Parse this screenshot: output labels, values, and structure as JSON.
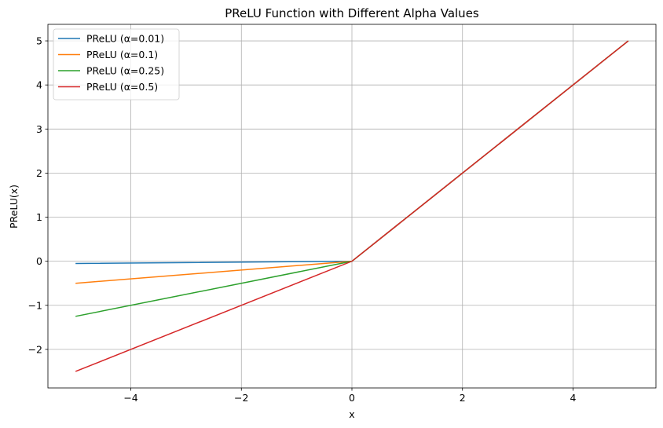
{
  "chart_data": {
    "type": "line",
    "title": "PReLU Function with Different Alpha Values",
    "xlabel": "x",
    "ylabel": "PReLU(x)",
    "xlim": [
      -5.5,
      5.5
    ],
    "ylim": [
      -2.875,
      5.375
    ],
    "xticks": [
      -4,
      -2,
      0,
      2,
      4
    ],
    "yticks": [
      -2,
      -1,
      0,
      1,
      2,
      3,
      4,
      5
    ],
    "xtick_labels": [
      "−4",
      "−2",
      "0",
      "2",
      "4"
    ],
    "ytick_labels": [
      "−2",
      "−1",
      "0",
      "1",
      "2",
      "3",
      "4",
      "5"
    ],
    "grid": true,
    "legend_position": "top-left",
    "series": [
      {
        "name": "PReLU (α=0.01)",
        "color": "#1f77b4",
        "x": [
          -5,
          0,
          5
        ],
        "y": [
          -0.05,
          0,
          5
        ]
      },
      {
        "name": "PReLU (α=0.1)",
        "color": "#ff7f0e",
        "x": [
          -5,
          0,
          5
        ],
        "y": [
          -0.5,
          0,
          5
        ]
      },
      {
        "name": "PReLU (α=0.25)",
        "color": "#2ca02c",
        "x": [
          -5,
          0,
          5
        ],
        "y": [
          -1.25,
          0,
          5
        ]
      },
      {
        "name": "PReLU (α=0.5)",
        "color": "#d62728",
        "x": [
          -5,
          0,
          5
        ],
        "y": [
          -2.5,
          0,
          5
        ]
      }
    ]
  }
}
